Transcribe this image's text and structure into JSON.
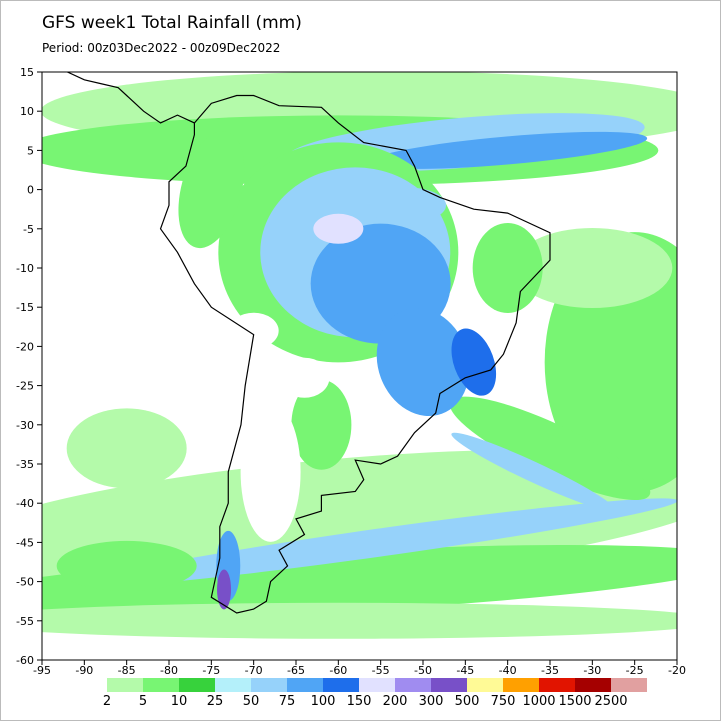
{
  "title": "GFS week1 Total Rainfall (mm)",
  "subtitle": "Period: 00z03Dec2022 - 00z09Dec2022",
  "map": {
    "xlim": [
      -95,
      -20
    ],
    "ylim": [
      -60,
      15
    ],
    "xticks": [
      -95,
      -90,
      -85,
      -80,
      -75,
      -70,
      -65,
      -60,
      -55,
      -50,
      -45,
      -40,
      -35,
      -30,
      -25,
      -20
    ],
    "yticks": [
      15,
      10,
      5,
      0,
      -5,
      -10,
      -15,
      -20,
      -25,
      -30,
      -35,
      -40,
      -45,
      -50,
      -55,
      -60
    ]
  },
  "colorbar": {
    "levels": [
      2,
      5,
      10,
      25,
      50,
      75,
      100,
      150,
      200,
      300,
      500,
      750,
      1000,
      1500,
      2500
    ],
    "colors": [
      "#b4faaa",
      "#78f573",
      "#37d23c",
      "#b4f0fa",
      "#96d2fa",
      "#50a5f5",
      "#1e6eeb",
      "#e1e1ff",
      "#a08cf0",
      "#7850c8",
      "#fffa96",
      "#ffa000",
      "#e11400",
      "#a50000",
      "#e1a0a0"
    ]
  }
}
